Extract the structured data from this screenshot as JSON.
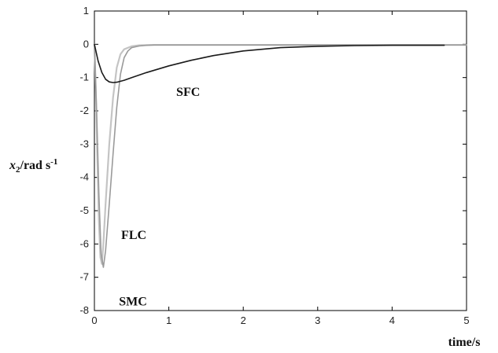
{
  "chart_data": {
    "type": "line",
    "xlabel": "time/s",
    "ylabel": {
      "main": "x",
      "sub": "2",
      "rest": "/rad s",
      "sup": "-1"
    },
    "xlim": [
      0,
      5
    ],
    "ylim": [
      -8,
      1
    ],
    "xticks": [
      "0",
      "1",
      "2",
      "3",
      "4",
      "5"
    ],
    "yticks": [
      "1",
      "0",
      "-1",
      "-2",
      "-3",
      "-4",
      "-5",
      "-6",
      "-7",
      "-8"
    ],
    "grid": false,
    "series": [
      {
        "name": "SFC",
        "color": "#1a1a1a",
        "x": [
          0,
          0.05,
          0.1,
          0.15,
          0.2,
          0.25,
          0.3,
          0.4,
          0.5,
          0.7,
          1.0,
          1.3,
          1.6,
          2.0,
          2.5,
          3.0,
          3.5,
          4.0,
          4.5,
          4.7
        ],
        "y": [
          0,
          -0.5,
          -0.85,
          -1.05,
          -1.13,
          -1.15,
          -1.14,
          -1.08,
          -1.0,
          -0.85,
          -0.65,
          -0.48,
          -0.34,
          -0.2,
          -0.1,
          -0.06,
          -0.04,
          -0.03,
          -0.03,
          -0.03
        ]
      },
      {
        "name": "FLC",
        "color": "#9a9a9a",
        "x": [
          0,
          0.03,
          0.06,
          0.09,
          0.12,
          0.15,
          0.2,
          0.25,
          0.3,
          0.35,
          0.4,
          0.45,
          0.5,
          0.6,
          0.7,
          0.8,
          1.0,
          1.5,
          2.0,
          3.0,
          4.0,
          5.0
        ],
        "y": [
          0,
          -2.0,
          -4.5,
          -6.3,
          -6.7,
          -6.2,
          -4.8,
          -3.3,
          -1.9,
          -0.9,
          -0.4,
          -0.2,
          -0.1,
          -0.05,
          -0.03,
          -0.02,
          -0.02,
          -0.02,
          -0.02,
          -0.02,
          -0.02,
          -0.02
        ]
      },
      {
        "name": "SMC",
        "color": "#c4c4c4",
        "x": [
          0,
          0.02,
          0.04,
          0.06,
          0.08,
          0.1,
          0.12,
          0.15,
          0.2,
          0.25,
          0.3,
          0.35,
          0.4,
          0.5,
          0.6,
          0.8,
          1.0,
          1.5,
          2.0,
          3.0,
          4.0,
          5.0
        ],
        "y": [
          0,
          -1.5,
          -3.5,
          -5.3,
          -6.4,
          -6.6,
          -6.0,
          -4.8,
          -3.0,
          -1.6,
          -0.7,
          -0.3,
          -0.15,
          -0.06,
          -0.03,
          -0.02,
          -0.02,
          -0.02,
          -0.02,
          -0.02,
          -0.02,
          -0.02
        ]
      }
    ],
    "annotations": [
      {
        "text": "SFC",
        "x": 1.1,
        "y": -1.55
      },
      {
        "text": "FLC",
        "x": 0.36,
        "y": -5.85
      },
      {
        "text": "SMC",
        "x": 0.33,
        "y": -7.85
      }
    ]
  }
}
